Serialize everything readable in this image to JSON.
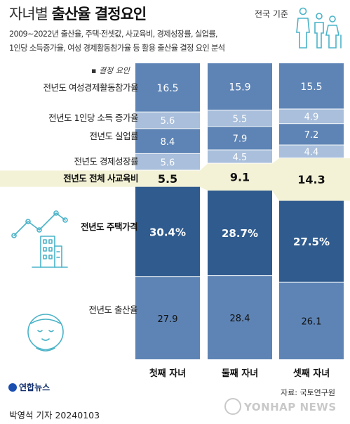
{
  "header": {
    "title_light": "자녀별",
    "title_bold": "출산율 결정요인",
    "basis": "전국 기준",
    "subtitle_line1": "2009~2022년 출산율, 주택·전셋값, 사교육비, 경제성장률, 실업률,",
    "subtitle_line2": "1인당 소득증가율, 여성 경제활동참가율 등 활용 출산율 결정 요인 분석"
  },
  "legend": {
    "label": "결정 요인"
  },
  "icons": [
    "family-icon",
    "house-chart-icon",
    "baby-icon"
  ],
  "colors": {
    "dark": "#2f5b8e",
    "mid": "#5e84b5",
    "light": "#a9bfdb",
    "highlight_band": "#f3f2d6"
  },
  "chart_data": {
    "type": "bar",
    "stacked": true,
    "value_format_note": "",
    "categories": [
      "첫째 자녀",
      "둘째 자녀",
      "셋째 자녀"
    ],
    "factors": [
      {
        "label": "전년도 여성경제활동참가율",
        "values": [
          16.5,
          15.9,
          15.5
        ],
        "labels": [
          "16.5",
          "15.9",
          "15.5"
        ]
      },
      {
        "label": "전년도 1인당 소득 증가율",
        "values": [
          5.6,
          5.5,
          4.9
        ],
        "labels": [
          "5.6",
          "5.5",
          "4.9"
        ]
      },
      {
        "label": "전년도 실업률",
        "values": [
          8.4,
          7.9,
          7.2
        ],
        "labels": [
          "8.4",
          "7.9",
          "7.2"
        ]
      },
      {
        "label": "전년도 경제성장률",
        "values": [
          5.6,
          4.5,
          4.4
        ],
        "labels": [
          "5.6",
          "4.5",
          "4.4"
        ]
      },
      {
        "label": "전년도 전체 사교육비",
        "values": [
          5.5,
          9.1,
          14.3
        ],
        "labels": [
          "5.5",
          "9.1",
          "14.3"
        ]
      },
      {
        "label": "전년도 주택가격",
        "values": [
          30.4,
          28.7,
          27.5
        ],
        "labels": [
          "30.4%",
          "28.7%",
          "27.5%"
        ]
      },
      {
        "label": "전년도 출산율",
        "values": [
          27.9,
          28.4,
          26.1
        ],
        "labels": [
          "27.9",
          "28.4",
          "26.1"
        ]
      }
    ]
  },
  "footer": {
    "source": "자료: 국토연구원",
    "credit": "박영석 기자  20240103",
    "logo": "연합뉴스",
    "watermark": "YONHAP NEWS"
  }
}
